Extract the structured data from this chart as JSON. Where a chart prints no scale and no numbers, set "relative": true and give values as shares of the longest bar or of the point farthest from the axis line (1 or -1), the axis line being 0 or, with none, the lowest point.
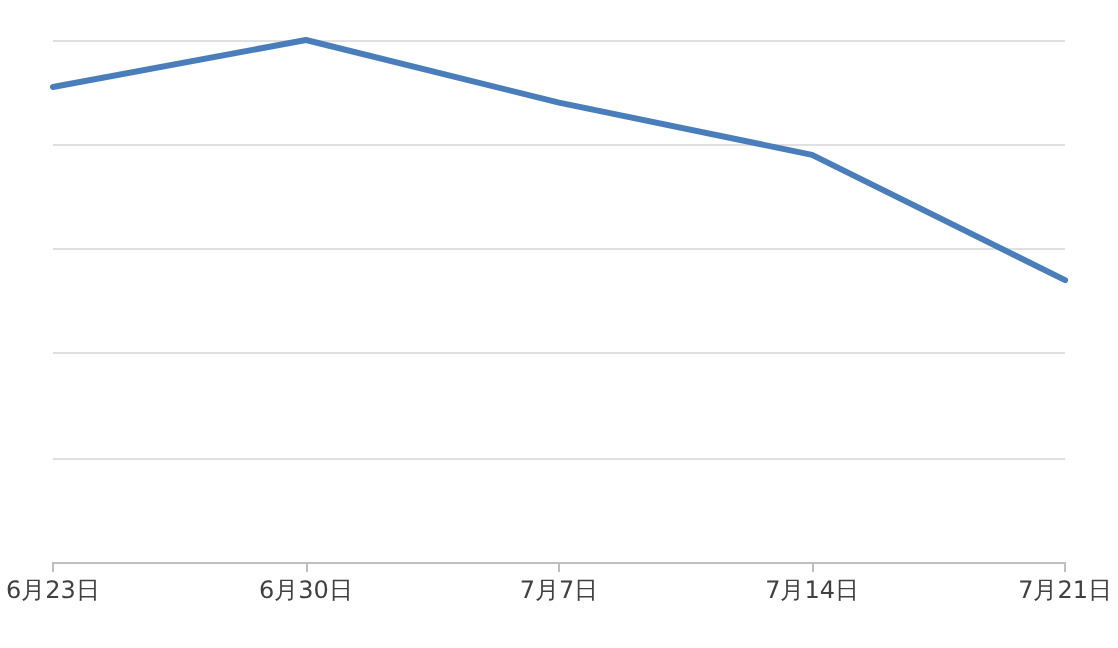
{
  "chart_data": {
    "type": "line",
    "categories": [
      "6月23日",
      "6月30日",
      "7月7日",
      "7月14日",
      "7月21日"
    ],
    "series": [
      {
        "color": "#4a7ebb",
        "values": [
          0.91,
          1,
          0.88,
          0.78,
          0.54
        ]
      }
    ],
    "relative": true,
    "grid": "y",
    "marker": "none",
    "line_style": "solid"
  }
}
